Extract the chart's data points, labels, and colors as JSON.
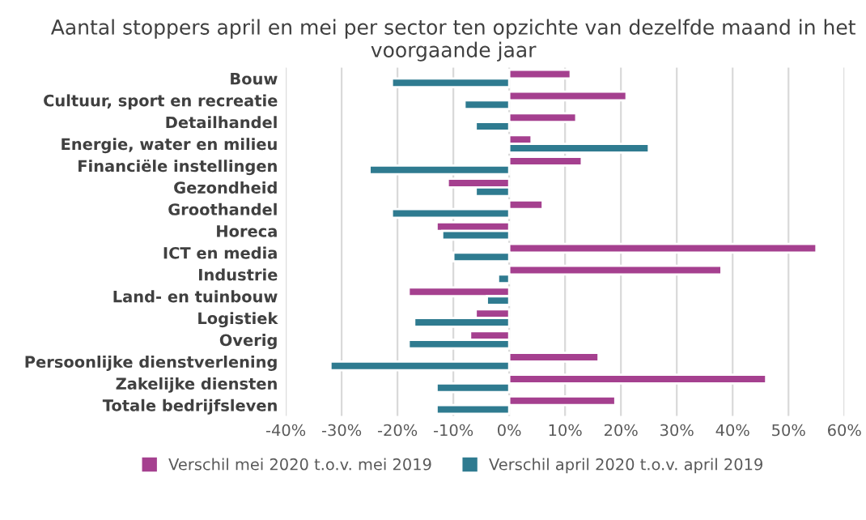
{
  "chart_data": {
    "type": "bar",
    "orientation": "horizontal",
    "title": "Aantal stoppers april en mei per sector ten opzichte van dezelfde maand in het voorgaande jaar",
    "categories": [
      "Bouw",
      "Cultuur, sport en recreatie",
      "Detailhandel",
      "Energie, water en milieu",
      "Financiële instellingen",
      "Gezondheid",
      "Groothandel",
      "Horeca",
      "ICT en media",
      "Industrie",
      "Land- en tuinbouw",
      "Logistiek",
      "Overig",
      "Persoonlijke dienstverlening",
      "Zakelijke diensten",
      "Totale bedrijfsleven"
    ],
    "series": [
      {
        "name": "Verschil mei 2020 t.o.v. mei 2019",
        "color": "#a5408f",
        "values": [
          11,
          21,
          12,
          4,
          13,
          -11,
          6,
          -13,
          55,
          38,
          -18,
          -6,
          -7,
          16,
          46,
          19
        ]
      },
      {
        "name": "Verschil april 2020 t.o.v. april 2019",
        "color": "#2f7b90",
        "values": [
          -21,
          -8,
          -6,
          25,
          -25,
          -6,
          -21,
          -12,
          -10,
          -2,
          -4,
          -17,
          -18,
          -32,
          -13,
          -13
        ]
      }
    ],
    "xlim": [
      -40,
      60
    ],
    "xticks": [
      {
        "value": -40,
        "label": "-40%"
      },
      {
        "value": -30,
        "label": "-30%"
      },
      {
        "value": -20,
        "label": "-20%"
      },
      {
        "value": -10,
        "label": "-10%"
      },
      {
        "value": 0,
        "label": "0%"
      },
      {
        "value": 10,
        "label": "10%"
      },
      {
        "value": 20,
        "label": "20%"
      },
      {
        "value": 30,
        "label": "30%"
      },
      {
        "value": 40,
        "label": "40%"
      },
      {
        "value": 50,
        "label": "50%"
      },
      {
        "value": 60,
        "label": "60%"
      }
    ],
    "grid": "x",
    "legend": "bottom"
  }
}
